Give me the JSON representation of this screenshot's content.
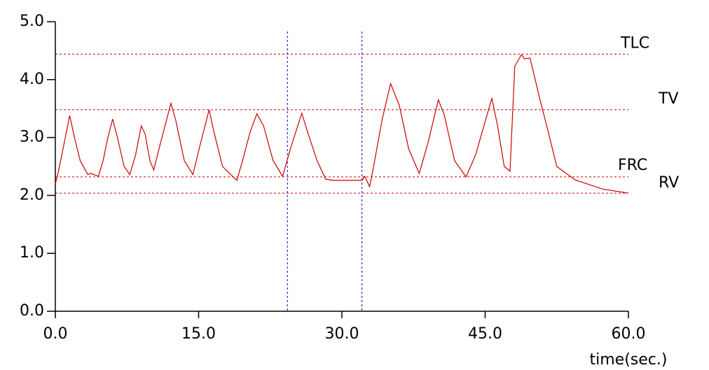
{
  "chart_data": {
    "type": "line",
    "x_label": "time(sec.)",
    "x": [
      0,
      0.3,
      0.8,
      1.5,
      2.0,
      2.6,
      3.4,
      3.7,
      4.5,
      5.0,
      5.5,
      6.0,
      6.5,
      7.2,
      7.8,
      8.4,
      9.0,
      9.4,
      9.9,
      10.3,
      11.0,
      12.1,
      12.6,
      13.5,
      14.4,
      15.2,
      16.1,
      16.6,
      17.5,
      19.0,
      19.6,
      20.4,
      21.1,
      21.8,
      22.8,
      23.8,
      24.6,
      25.8,
      26.4,
      27.4,
      28.3,
      29.1,
      32.1,
      32.4,
      32.9,
      33.3,
      34.2,
      35.1,
      36.0,
      37.0,
      38.1,
      39.0,
      40.1,
      40.7,
      41.8,
      43.0,
      44.0,
      45.7,
      46.3,
      47.0,
      47.6,
      48.1,
      48.8,
      49.1,
      49.7,
      50.7,
      51.6,
      52.5,
      54.4,
      57.3,
      60.0
    ],
    "series": [
      {
        "color": "#cc0000",
        "values": [
          2.2,
          2.4,
          2.8,
          3.38,
          3.0,
          2.6,
          2.36,
          2.38,
          2.33,
          2.6,
          3.0,
          3.32,
          3.0,
          2.5,
          2.36,
          2.7,
          3.2,
          3.06,
          2.6,
          2.44,
          2.9,
          3.59,
          3.3,
          2.6,
          2.36,
          2.9,
          3.48,
          3.1,
          2.5,
          2.26,
          2.6,
          3.1,
          3.41,
          3.2,
          2.6,
          2.33,
          2.8,
          3.42,
          3.1,
          2.6,
          2.28,
          2.26,
          2.26,
          2.33,
          2.15,
          2.48,
          3.3,
          3.93,
          3.56,
          2.8,
          2.38,
          2.9,
          3.65,
          3.4,
          2.6,
          2.32,
          2.7,
          3.68,
          3.2,
          2.5,
          2.42,
          4.23,
          4.43,
          4.36,
          4.37,
          3.68,
          3.1,
          2.5,
          2.27,
          2.11,
          2.04
        ]
      }
    ],
    "xlim": [
      0,
      60
    ],
    "ylim": [
      0,
      5
    ],
    "xticks": [
      {
        "value": 0,
        "label": "0.0"
      },
      {
        "value": 15,
        "label": "15.0"
      },
      {
        "value": 30,
        "label": "30.0"
      },
      {
        "value": 45,
        "label": "45.0"
      },
      {
        "value": 60,
        "label": "60.0"
      }
    ],
    "yticks": [
      {
        "value": 0,
        "label": "0.0"
      },
      {
        "value": 1,
        "label": "1.0"
      },
      {
        "value": 2,
        "label": "2.0"
      },
      {
        "value": 3,
        "label": "3.0"
      },
      {
        "value": 4,
        "label": "4.0"
      },
      {
        "value": 5,
        "label": "5.0"
      }
    ],
    "reference_lines": [
      {
        "label": "TLC",
        "value": 4.44
      },
      {
        "label": "TV",
        "value": 3.48
      },
      {
        "label": "FRC",
        "value": 2.32
      },
      {
        "label": "RV",
        "value": 2.04
      }
    ],
    "reference_color": "#cc0000",
    "markers_x": [
      24.3,
      32.1
    ],
    "marker_color": "#0000cc"
  }
}
